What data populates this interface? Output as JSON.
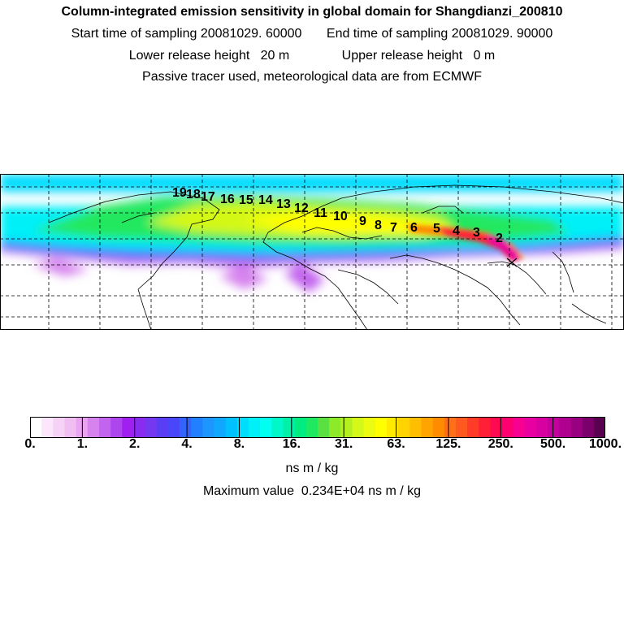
{
  "title": "Column-integrated emission sensitivity in global domain for Shangdianzi_200810",
  "sampling": {
    "start_label": "Start time of sampling",
    "start_value": "20081029. 60000",
    "end_label": "End time of sampling",
    "end_value": "20081029. 90000"
  },
  "release": {
    "lower_label": "Lower release height",
    "lower_value": "20 m",
    "upper_label": "Upper release height",
    "upper_value": "0 m"
  },
  "note": "Passive tracer used, meteorological data are from ECMWF",
  "colorbar": {
    "ticks": [
      "0.",
      "1.",
      "2.",
      "4.",
      "8.",
      "16.",
      "31.",
      "63.",
      "125.",
      "250.",
      "500.",
      "1000."
    ],
    "colors": [
      "#ffffff",
      "#fbe6fb",
      "#f6d2f6",
      "#f0bef0",
      "#e9a3ef",
      "#d683ee",
      "#c264ee",
      "#ae46ee",
      "#a020f0",
      "#8a2cf0",
      "#7438f0",
      "#5a3ef5",
      "#4848fa",
      "#3264fc",
      "#2080fd",
      "#1e96ff",
      "#10a8ff",
      "#00c0ff",
      "#00dcff",
      "#00f0f8",
      "#00fff0",
      "#00f8c8",
      "#00f0a8",
      "#00ec80",
      "#20e860",
      "#5ae040",
      "#8cea28",
      "#b4f020",
      "#d4f818",
      "#ecfc10",
      "#ffff00",
      "#ffea00",
      "#ffd400",
      "#ffbe00",
      "#ffa400",
      "#ff8c00",
      "#ff7018",
      "#ff5820",
      "#ff3c28",
      "#ff2038",
      "#ff0a50",
      "#ff0070",
      "#f80090",
      "#e800a0",
      "#d800a0",
      "#c4009c",
      "#b00090",
      "#980080",
      "#7c006c",
      "#5a0050"
    ],
    "unit": "ns m / kg",
    "max_label": "Maximum value",
    "max_value": "0.234E+04 ns m / kg"
  },
  "trajectory_labels": [
    "2",
    "3",
    "4",
    "5",
    "6",
    "7",
    "8",
    "9",
    "10",
    "11",
    "12",
    "13",
    "14",
    "15",
    "16",
    "17",
    "18",
    "19"
  ],
  "map": {
    "projection": "lat-lon",
    "grid": "dashed",
    "receptor_marker": "x-marker-icon"
  }
}
